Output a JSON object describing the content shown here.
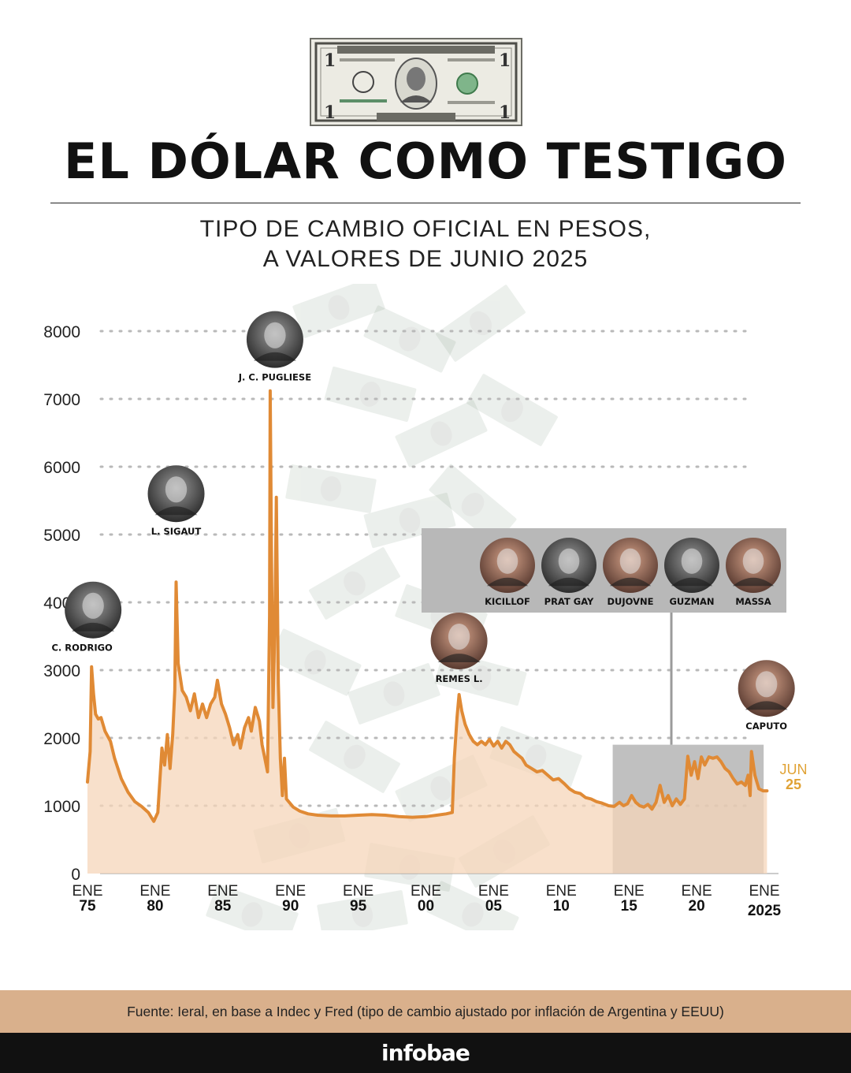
{
  "header": {
    "title": "EL DÓLAR COMO TESTIGO",
    "subtitle_line1": "TIPO DE CAMBIO OFICIAL  EN PESOS,",
    "subtitle_line2": "A VALORES DE JUNIO 2025"
  },
  "bill_icon": "dollar-bill-icon",
  "chart_data": {
    "type": "area",
    "ylim": [
      0,
      8000
    ],
    "yticks": [
      "8000",
      "7000",
      "6000",
      "5000",
      "4000",
      "3000",
      "2000",
      "1000",
      "0"
    ],
    "xticks": [
      {
        "year": 1975,
        "top": "ENE",
        "bottom": "75"
      },
      {
        "year": 1980,
        "top": "ENE",
        "bottom": "80"
      },
      {
        "year": 1985,
        "top": "ENE",
        "bottom": "85"
      },
      {
        "year": 1990,
        "top": "ENE",
        "bottom": "90"
      },
      {
        "year": 1995,
        "top": "ENE",
        "bottom": "95"
      },
      {
        "year": 2000,
        "top": "ENE",
        "bottom": "00"
      },
      {
        "year": 2005,
        "top": "ENE",
        "bottom": "05"
      },
      {
        "year": 2010,
        "top": "ENE",
        "bottom": "10"
      },
      {
        "year": 2015,
        "top": "ENE",
        "bottom": "15"
      },
      {
        "year": 2020,
        "top": "ENE",
        "bottom": "20"
      },
      {
        "year": 2025,
        "top": "ENE",
        "bottom": "2025"
      }
    ],
    "grid": true,
    "colors": {
      "line": "#e08a35",
      "area": "#f6d6b9",
      "end_label": "#e0a235",
      "highlight_box": "#8c8c8c"
    },
    "series": [
      {
        "points": [
          [
            1975.0,
            1350
          ],
          [
            1975.2,
            1800
          ],
          [
            1975.3,
            3050
          ],
          [
            1975.45,
            2650
          ],
          [
            1975.6,
            2350
          ],
          [
            1975.8,
            2280
          ],
          [
            1976.0,
            2300
          ],
          [
            1976.3,
            2100
          ],
          [
            1976.7,
            1950
          ],
          [
            1977.0,
            1700
          ],
          [
            1977.5,
            1400
          ],
          [
            1978.0,
            1200
          ],
          [
            1978.5,
            1060
          ],
          [
            1979.0,
            990
          ],
          [
            1979.5,
            900
          ],
          [
            1979.9,
            770
          ],
          [
            1980.2,
            900
          ],
          [
            1980.5,
            1850
          ],
          [
            1980.7,
            1600
          ],
          [
            1980.9,
            2050
          ],
          [
            1981.1,
            1550
          ],
          [
            1981.3,
            2050
          ],
          [
            1981.45,
            2700
          ],
          [
            1981.55,
            4300
          ],
          [
            1981.7,
            3100
          ],
          [
            1982.0,
            2700
          ],
          [
            1982.3,
            2600
          ],
          [
            1982.6,
            2400
          ],
          [
            1982.9,
            2650
          ],
          [
            1983.2,
            2300
          ],
          [
            1983.5,
            2500
          ],
          [
            1983.8,
            2300
          ],
          [
            1984.1,
            2500
          ],
          [
            1984.4,
            2600
          ],
          [
            1984.6,
            2850
          ],
          [
            1984.9,
            2500
          ],
          [
            1985.2,
            2350
          ],
          [
            1985.5,
            2150
          ],
          [
            1985.8,
            1900
          ],
          [
            1986.1,
            2050
          ],
          [
            1986.3,
            1850
          ],
          [
            1986.6,
            2150
          ],
          [
            1986.9,
            2300
          ],
          [
            1987.1,
            2100
          ],
          [
            1987.4,
            2450
          ],
          [
            1987.7,
            2250
          ],
          [
            1987.9,
            1900
          ],
          [
            1988.1,
            1700
          ],
          [
            1988.3,
            1500
          ],
          [
            1988.45,
            3800
          ],
          [
            1988.5,
            7120
          ],
          [
            1988.6,
            4600
          ],
          [
            1988.7,
            2450
          ],
          [
            1988.85,
            3700
          ],
          [
            1988.95,
            5550
          ],
          [
            1989.1,
            2800
          ],
          [
            1989.25,
            1700
          ],
          [
            1989.4,
            1150
          ],
          [
            1989.55,
            1700
          ],
          [
            1989.7,
            1100
          ],
          [
            1990.2,
            980
          ],
          [
            1990.7,
            920
          ],
          [
            1991.3,
            880
          ],
          [
            1992.0,
            860
          ],
          [
            1993.0,
            850
          ],
          [
            1994.0,
            850
          ],
          [
            1995.0,
            860
          ],
          [
            1996.0,
            870
          ],
          [
            1997.0,
            860
          ],
          [
            1998.0,
            840
          ],
          [
            1999.0,
            830
          ],
          [
            2000.0,
            840
          ],
          [
            2000.8,
            860
          ],
          [
            2001.5,
            880
          ],
          [
            2001.95,
            900
          ],
          [
            2002.1,
            1700
          ],
          [
            2002.3,
            2300
          ],
          [
            2002.45,
            2640
          ],
          [
            2002.65,
            2400
          ],
          [
            2002.9,
            2200
          ],
          [
            2003.2,
            2050
          ],
          [
            2003.5,
            1950
          ],
          [
            2003.8,
            1900
          ],
          [
            2004.1,
            1950
          ],
          [
            2004.4,
            1900
          ],
          [
            2004.7,
            1980
          ],
          [
            2005.0,
            1880
          ],
          [
            2005.3,
            1950
          ],
          [
            2005.6,
            1850
          ],
          [
            2005.9,
            1950
          ],
          [
            2006.2,
            1900
          ],
          [
            2006.5,
            1800
          ],
          [
            2006.8,
            1750
          ],
          [
            2007.1,
            1700
          ],
          [
            2007.4,
            1600
          ],
          [
            2007.8,
            1550
          ],
          [
            2008.2,
            1500
          ],
          [
            2008.6,
            1520
          ],
          [
            2009.0,
            1450
          ],
          [
            2009.4,
            1380
          ],
          [
            2009.8,
            1400
          ],
          [
            2010.2,
            1330
          ],
          [
            2010.6,
            1250
          ],
          [
            2011.0,
            1200
          ],
          [
            2011.4,
            1180
          ],
          [
            2011.8,
            1120
          ],
          [
            2012.2,
            1100
          ],
          [
            2012.6,
            1060
          ],
          [
            2013.0,
            1040
          ],
          [
            2013.5,
            1000
          ],
          [
            2013.9,
            990
          ],
          [
            2014.3,
            1050
          ],
          [
            2014.6,
            1000
          ],
          [
            2014.9,
            1030
          ],
          [
            2015.2,
            1150
          ],
          [
            2015.5,
            1050
          ],
          [
            2015.8,
            1000
          ],
          [
            2016.1,
            980
          ],
          [
            2016.4,
            1020
          ],
          [
            2016.7,
            950
          ],
          [
            2017.0,
            1050
          ],
          [
            2017.3,
            1300
          ],
          [
            2017.6,
            1050
          ],
          [
            2017.9,
            1150
          ],
          [
            2018.2,
            1000
          ],
          [
            2018.5,
            1100
          ],
          [
            2018.8,
            1020
          ],
          [
            2019.1,
            1100
          ],
          [
            2019.35,
            1730
          ],
          [
            2019.6,
            1450
          ],
          [
            2019.85,
            1650
          ],
          [
            2020.1,
            1400
          ],
          [
            2020.35,
            1720
          ],
          [
            2020.6,
            1600
          ],
          [
            2020.9,
            1720
          ],
          [
            2021.2,
            1700
          ],
          [
            2021.5,
            1720
          ],
          [
            2021.8,
            1650
          ],
          [
            2022.1,
            1550
          ],
          [
            2022.4,
            1500
          ],
          [
            2022.7,
            1400
          ],
          [
            2023.0,
            1320
          ],
          [
            2023.3,
            1350
          ],
          [
            2023.6,
            1300
          ],
          [
            2023.8,
            1450
          ],
          [
            2023.95,
            1150
          ],
          [
            2024.05,
            1800
          ],
          [
            2024.3,
            1450
          ],
          [
            2024.6,
            1250
          ],
          [
            2024.9,
            1220
          ],
          [
            2025.2,
            1220
          ]
        ]
      }
    ],
    "end_label": {
      "line1": "JUN",
      "line2": "25"
    },
    "annotations": [
      {
        "id": "rodrigo",
        "label": "C. RODRIGO",
        "year": 1975.3,
        "value": 3050
      },
      {
        "id": "sigaut",
        "label": "L. SIGAUT",
        "year": 1981.55,
        "value": 4300
      },
      {
        "id": "pugliese",
        "label": "J. C. PUGLIESE",
        "year": 1988.5,
        "value": 7120
      },
      {
        "id": "remes",
        "label": "REMES L.",
        "year": 2002.45,
        "value": 2640
      },
      {
        "id": "caputo",
        "label": "CAPUTO",
        "year": 2024.05,
        "value": 1800
      }
    ],
    "group_annotation": {
      "labels": [
        "KICILLOF",
        "PRAT GAY",
        "DUJOVNE",
        "GUZMAN",
        "MASSA"
      ],
      "x_range": [
        2013.8,
        2024.95
      ],
      "y_top": 1900
    }
  },
  "source": "Fuente: Ieral, en base a Indec y Fred (tipo de cambio ajustado por inflación de Argentina y EEUU)",
  "brand": "infobae"
}
